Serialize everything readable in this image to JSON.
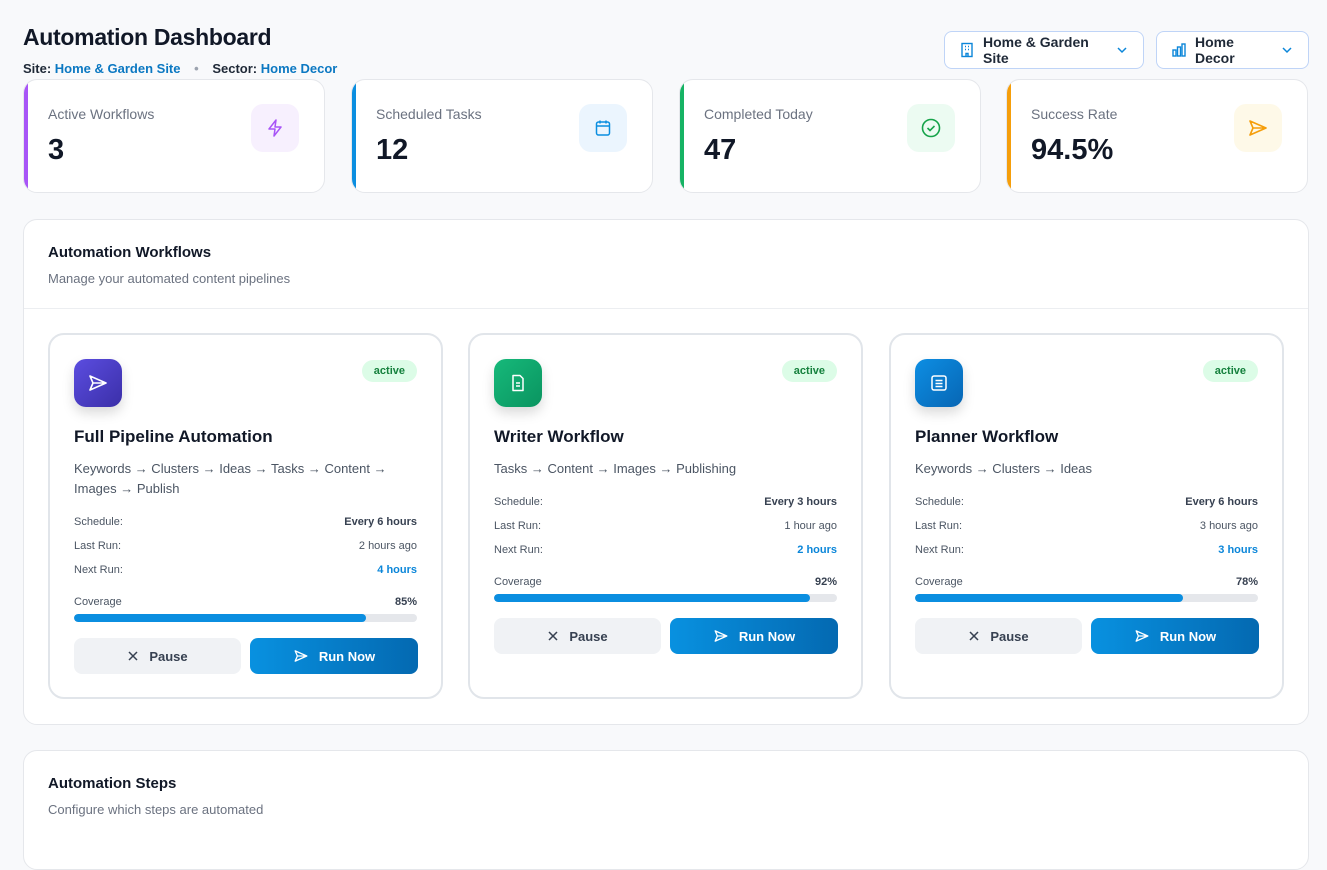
{
  "header": {
    "title": "Automation Dashboard",
    "site_label": "Site:",
    "site_value": "Home & Garden Site",
    "sector_label": "Sector:",
    "sector_value": "Home Decor",
    "separator": "•"
  },
  "selectors": {
    "site": {
      "value": "Home & Garden Site",
      "icon": "building-icon"
    },
    "sector": {
      "value": "Home Decor",
      "icon": "bar-chart-icon"
    }
  },
  "stats": [
    {
      "label": "Active Workflows",
      "value": "3",
      "color": "#a855f7",
      "icon": "bolt-icon"
    },
    {
      "label": "Scheduled Tasks",
      "value": "12",
      "color": "#0b8ee0",
      "icon": "calendar-icon"
    },
    {
      "label": "Completed Today",
      "value": "47",
      "color": "#16b364",
      "icon": "check-circle-icon"
    },
    {
      "label": "Success Rate",
      "value": "94.5%",
      "color": "#f59e0b",
      "icon": "send-icon"
    }
  ],
  "workflows_panel": {
    "title": "Automation Workflows",
    "description": "Manage your automated content pipelines"
  },
  "workflows": [
    {
      "title": "Full Pipeline Automation",
      "status": "active",
      "description": "Keywords → Clusters → Ideas → Tasks → Content → Images → Publish",
      "schedule_label": "Schedule:",
      "schedule": "Every 6 hours",
      "last_run_label": "Last Run:",
      "last_run": "2 hours ago",
      "next_run_label": "Next Run:",
      "next_run": "4 hours",
      "coverage_label": "Coverage",
      "coverage": "85%",
      "coverage_value": 85,
      "pause_label": "Pause",
      "run_label": "Run Now",
      "icon": "send-icon",
      "color": "#4f46e5"
    },
    {
      "title": "Writer Workflow",
      "status": "active",
      "description": "Tasks → Content → Images → Publishing",
      "schedule_label": "Schedule:",
      "schedule": "Every 3 hours",
      "last_run_label": "Last Run:",
      "last_run": "1 hour ago",
      "next_run_label": "Next Run:",
      "next_run": "2 hours",
      "coverage_label": "Coverage",
      "coverage": "92%",
      "coverage_value": 92,
      "pause_label": "Pause",
      "run_label": "Run Now",
      "icon": "document-icon",
      "color": "#10b981"
    },
    {
      "title": "Planner Workflow",
      "status": "active",
      "description": "Keywords → Clusters → Ideas",
      "schedule_label": "Schedule:",
      "schedule": "Every 6 hours",
      "last_run_label": "Last Run:",
      "last_run": "3 hours ago",
      "next_run_label": "Next Run:",
      "next_run": "3 hours",
      "coverage_label": "Coverage",
      "coverage": "78%",
      "coverage_value": 78,
      "pause_label": "Pause",
      "run_label": "Run Now",
      "icon": "list-icon",
      "color": "#0b7fd4"
    }
  ],
  "steps_panel": {
    "title": "Automation Steps",
    "description": "Configure which steps are automated"
  }
}
